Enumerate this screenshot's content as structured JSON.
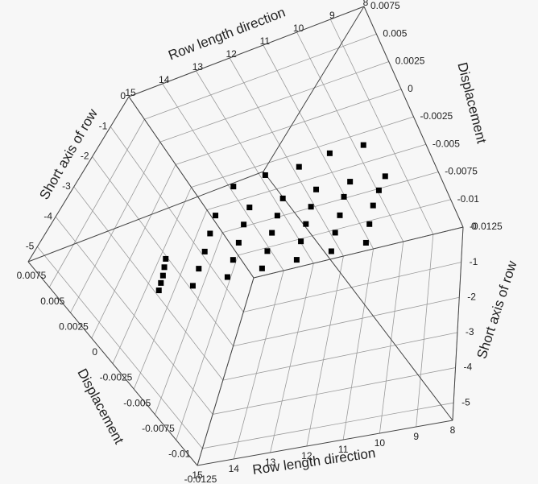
{
  "chart_data": {
    "type": "scatter3d",
    "x_label": "Row length direction",
    "y_label": "Short axis of row",
    "z_label": "Displacement",
    "xlim": [
      8,
      15
    ],
    "ylim": [
      -5.5,
      0
    ],
    "zlim": [
      -0.0125,
      0.0075
    ],
    "xticks": [
      8,
      9,
      10,
      11,
      12,
      13,
      14,
      15
    ],
    "yticks": [
      0,
      -1,
      -2,
      -3,
      -4,
      -5
    ],
    "zticks": [
      0.0075,
      0.005,
      0.0025,
      0,
      -0.0025,
      -0.005,
      -0.0075,
      -0.01,
      -0.0125
    ],
    "grid": true,
    "color": "#000000",
    "marker": "square",
    "x": [
      8.5,
      8.5,
      8.5,
      8.5,
      8.5,
      9.5,
      9.5,
      9.5,
      9.5,
      9.5,
      10.5,
      10.5,
      10.5,
      10.5,
      10.5,
      11.5,
      11.5,
      11.5,
      11.5,
      11.5,
      12.5,
      12.5,
      12.5,
      12.5,
      12.5,
      13.5,
      13.5,
      13.5,
      13.5,
      13.5,
      14.5,
      14.5,
      14.5,
      14.5,
      14.5,
      9,
      10,
      11,
      12,
      13
    ],
    "y": [
      -1.5,
      -2,
      -2.5,
      -3,
      -3.5,
      -1.5,
      -2,
      -2.5,
      -3,
      -3.5,
      -1.5,
      -2,
      -2.5,
      -3,
      -3.5,
      -1.5,
      -2,
      -2.5,
      -3,
      -3.5,
      -1.5,
      -2,
      -2.5,
      -3,
      -3.5,
      -1.5,
      -2,
      -2.5,
      -3,
      -3.5,
      -2.6,
      -2.8,
      -3,
      -3.2,
      -3.4,
      -1,
      -1,
      -1,
      -1,
      -1
    ],
    "z": [
      -0.003,
      -0.0028,
      -0.0027,
      -0.0029,
      -0.0031,
      -0.0026,
      -0.0025,
      -0.0027,
      -0.0028,
      -0.003,
      -0.0024,
      -0.0025,
      -0.0026,
      -0.0027,
      -0.0029,
      -0.0023,
      -0.0024,
      -0.0025,
      -0.0027,
      -0.0028,
      -0.0022,
      -0.0023,
      -0.0025,
      -0.0026,
      -0.0027,
      -0.002,
      -0.0022,
      -0.0024,
      -0.0025,
      -0.0026,
      -0.0018,
      -0.002,
      -0.0022,
      -0.0023,
      -0.0024,
      -0.0012,
      -0.001,
      -0.0013,
      -0.0011,
      -0.0012
    ]
  }
}
